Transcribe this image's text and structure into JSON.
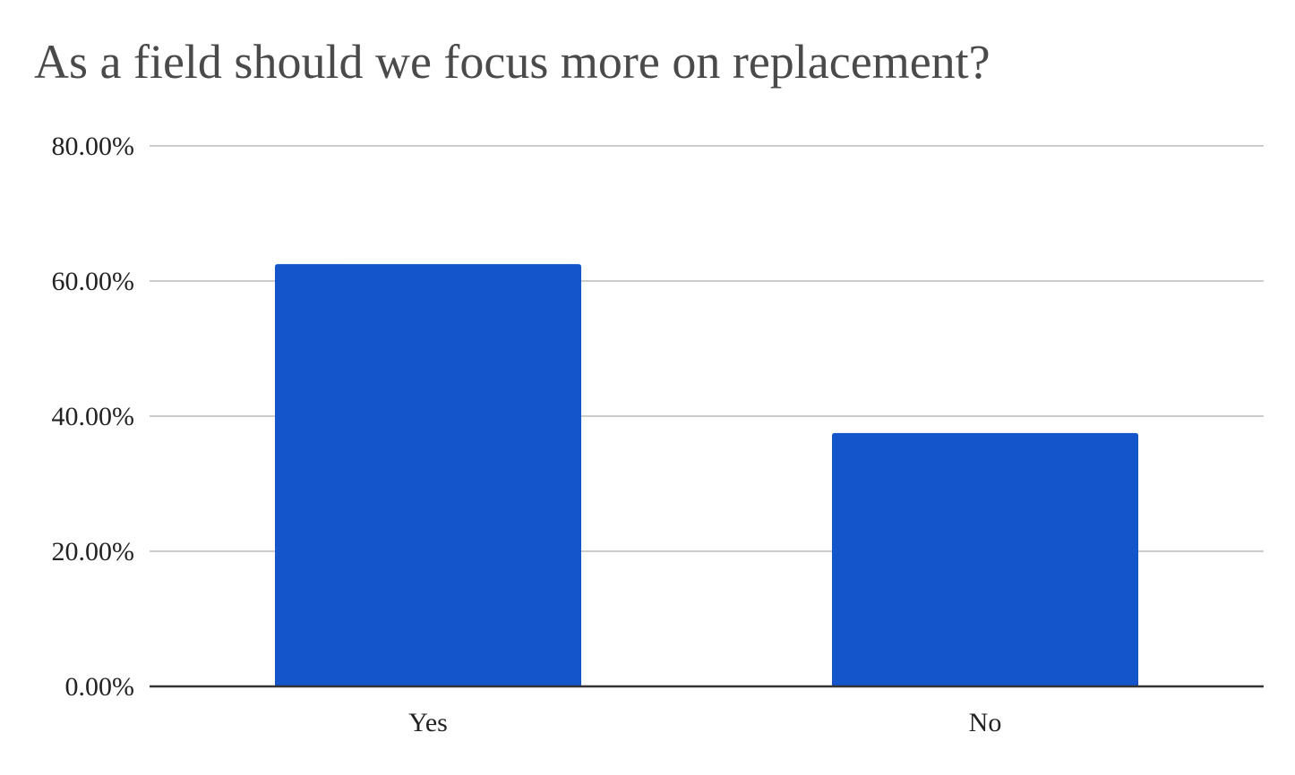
{
  "colors": {
    "bar": "#1455cc",
    "grid": "#cccccc",
    "axis": "#333333",
    "title": "#4a4a4a",
    "text": "#222222"
  },
  "chart_data": {
    "type": "bar",
    "title": "As a field should we focus more on replacement?",
    "xlabel": "",
    "ylabel": "",
    "categories": [
      "Yes",
      "No"
    ],
    "values": [
      62.5,
      37.5
    ],
    "ylim": [
      0,
      80
    ],
    "yticks": [
      0,
      20,
      40,
      60,
      80
    ],
    "ytick_labels": [
      "0.00%",
      "20.00%",
      "40.00%",
      "60.00%",
      "80.00%"
    ],
    "grid": true,
    "legend": "none"
  }
}
